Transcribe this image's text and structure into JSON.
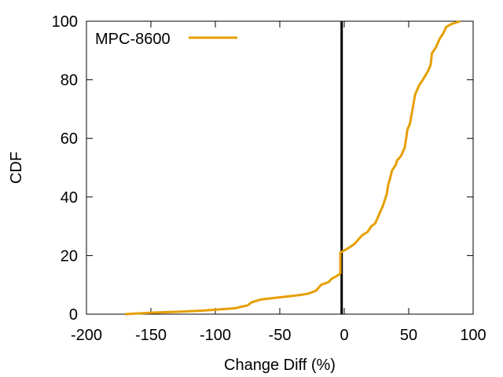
{
  "chart_data": {
    "type": "line",
    "title": "",
    "xlabel": "Change Diff (%)",
    "ylabel": "CDF",
    "xlim": [
      -200,
      100
    ],
    "ylim": [
      0,
      100
    ],
    "xticks": [
      -200,
      -150,
      -100,
      -50,
      0,
      50,
      100
    ],
    "yticks": [
      0,
      20,
      40,
      60,
      80,
      100
    ],
    "x_tick_labels": [
      "-200",
      "-150",
      "-100",
      "-50",
      "0",
      "50",
      "100"
    ],
    "y_tick_labels": [
      "0",
      "20",
      "40",
      "60",
      "80",
      "100"
    ],
    "grid": false,
    "legend_position": "top-left",
    "vertical_reference_line": {
      "x": -2,
      "color": "#000000"
    },
    "series": [
      {
        "name": "MPC-8600",
        "color": "#e69f00",
        "points": [
          [
            -170,
            0
          ],
          [
            -150,
            0.5
          ],
          [
            -130,
            0.8
          ],
          [
            -110,
            1.2
          ],
          [
            -85,
            2
          ],
          [
            -75,
            3
          ],
          [
            -72,
            4
          ],
          [
            -65,
            5
          ],
          [
            -55,
            5.5
          ],
          [
            -45,
            6
          ],
          [
            -35,
            6.5
          ],
          [
            -28,
            7
          ],
          [
            -22,
            8
          ],
          [
            -18,
            10
          ],
          [
            -12,
            11
          ],
          [
            -10,
            12
          ],
          [
            -6,
            13
          ],
          [
            -4,
            13.5
          ],
          [
            -3,
            14
          ],
          [
            -3,
            21
          ],
          [
            3,
            22.5
          ],
          [
            8,
            24
          ],
          [
            12,
            26
          ],
          [
            14,
            27
          ],
          [
            18,
            28
          ],
          [
            21,
            30
          ],
          [
            24,
            31
          ],
          [
            28,
            35
          ],
          [
            30,
            37
          ],
          [
            33,
            41
          ],
          [
            34,
            44
          ],
          [
            36,
            47
          ],
          [
            37,
            49
          ],
          [
            40,
            51
          ],
          [
            41,
            52.5
          ],
          [
            44,
            54
          ],
          [
            47,
            57
          ],
          [
            49,
            63
          ],
          [
            51,
            65
          ],
          [
            53,
            70
          ],
          [
            55,
            75
          ],
          [
            58,
            78
          ],
          [
            61,
            80
          ],
          [
            65,
            83
          ],
          [
            67,
            85
          ],
          [
            68,
            89
          ],
          [
            71,
            91
          ],
          [
            74,
            94
          ],
          [
            77,
            96
          ],
          [
            79,
            98
          ],
          [
            83,
            99
          ],
          [
            90,
            100
          ]
        ]
      }
    ]
  }
}
